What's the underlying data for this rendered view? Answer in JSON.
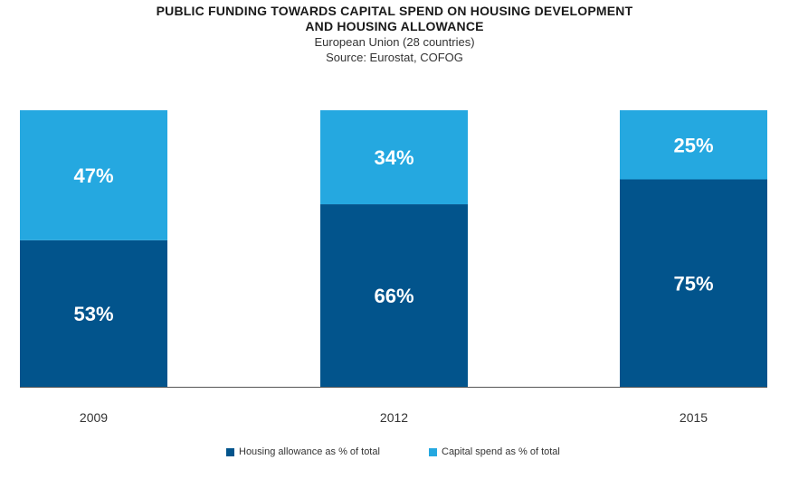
{
  "header": {
    "title_line1": "PUBLIC FUNDING TOWARDS CAPITAL SPEND ON HOUSING DEVELOPMENT",
    "title_line2": "AND HOUSING ALLOWANCE",
    "subtitle1": "European Union (28 countries)",
    "subtitle2": "Source: Eurostat, COFOG"
  },
  "colors": {
    "housing_allowance": "#02548c",
    "capital_spend": "#25a8e0",
    "label_text": "#ffffff"
  },
  "chart_data": {
    "type": "bar",
    "stacked": true,
    "title": "PUBLIC FUNDING TOWARDS CAPITAL SPEND ON HOUSING DEVELOPMENT AND HOUSING ALLOWANCE",
    "subtitle": "European Union (28 countries) Source: Eurostat, COFOG",
    "categories": [
      "2009",
      "2012",
      "2015"
    ],
    "series": [
      {
        "name": "Housing allowance as % of total",
        "values": [
          53,
          66,
          75
        ],
        "labels": [
          "53%",
          "66%",
          "75%"
        ]
      },
      {
        "name": "Capital spend as % of total",
        "values": [
          47,
          34,
          25
        ],
        "labels": [
          "47%",
          "34%",
          "25%"
        ]
      }
    ],
    "ylim": [
      0,
      100
    ],
    "grid": false,
    "legend_position": "bottom"
  }
}
